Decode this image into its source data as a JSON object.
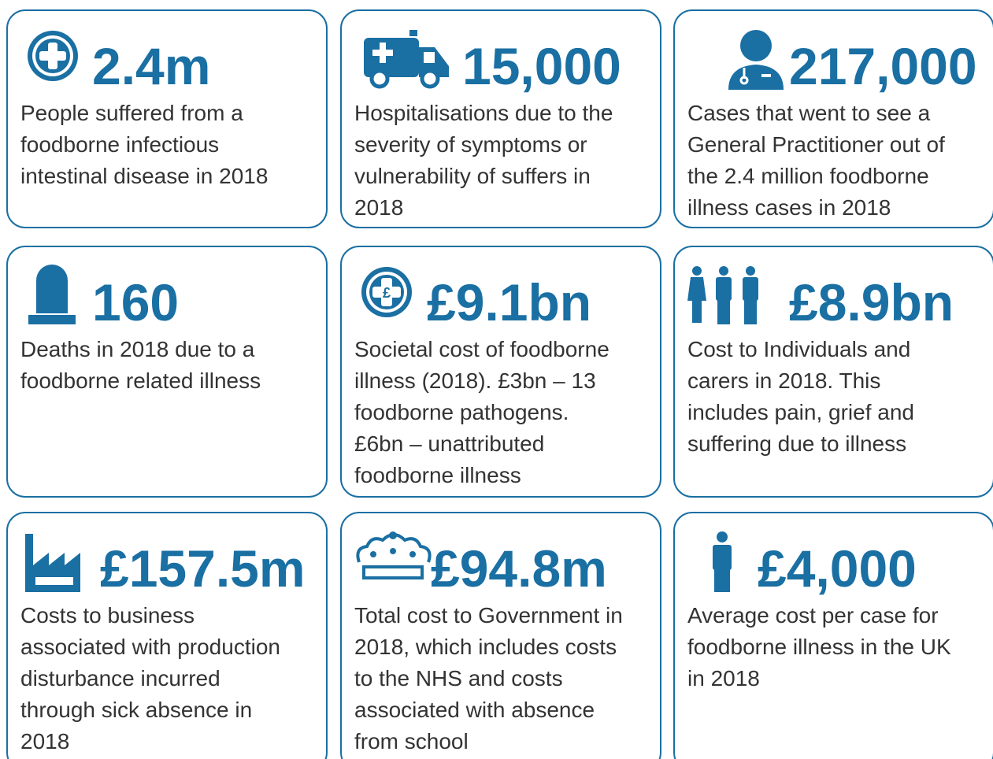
{
  "cards": [
    {
      "stat": "2.4m",
      "lines": [
        "People suffered from a",
        "foodborne infectious",
        "intestinal disease in 2018"
      ]
    },
    {
      "stat": "15,000",
      "lines": [
        "Hospitalisations due to the",
        "severity of symptoms or",
        "vulnerability of suffers in",
        "2018"
      ]
    },
    {
      "stat": "217,000",
      "lines": [
        "Cases that went to see a",
        "General Practitioner out of",
        "the 2.4 million foodborne",
        "illness cases in 2018"
      ]
    },
    {
      "stat": "160",
      "lines": [
        "Deaths in 2018 due to a",
        "foodborne related illness"
      ]
    },
    {
      "stat": "£9.1bn",
      "lines": [
        "Societal cost of foodborne",
        "illness (2018). £3bn – 13",
        "foodborne pathogens.",
        "£6bn – unattributed",
        "foodborne illness"
      ]
    },
    {
      "stat": "£8.9bn",
      "lines": [
        "Cost to Individuals and",
        "carers in 2018. This",
        "includes pain, grief and",
        "suffering due to illness"
      ]
    },
    {
      "stat": "£157.5m",
      "lines": [
        "Costs to business",
        "associated with production",
        "disturbance incurred",
        "through sick absence in",
        "2018"
      ]
    },
    {
      "stat": "£94.8m",
      "lines": [
        "Total cost to Government in",
        "2018, which includes costs",
        "to the NHS and costs",
        "associated with absence",
        "from school"
      ]
    },
    {
      "stat": "£4,000",
      "lines": [
        "Average cost per case for",
        "foodborne illness in the UK",
        "in 2018"
      ]
    }
  ]
}
